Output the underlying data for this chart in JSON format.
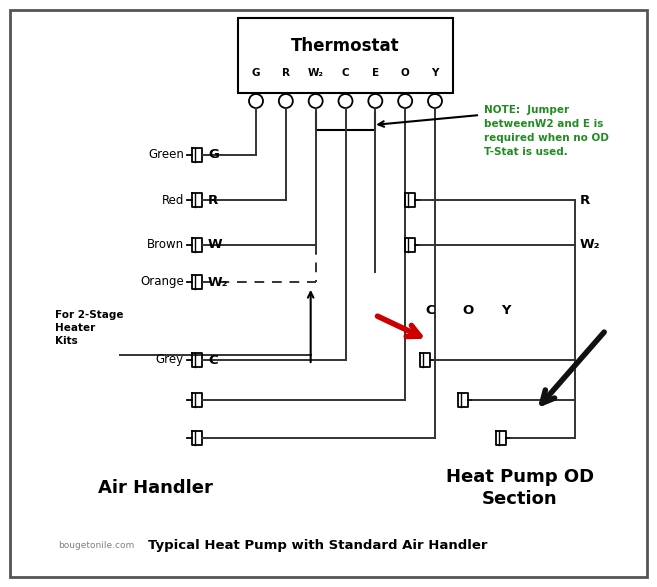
{
  "title": "Typical Heat Pump with Standard Air Handler",
  "subtitle": "bougetonile.com",
  "thermostat_label": "Thermostat",
  "note_text": "NOTE:  Jumper\nbetweenW2 and E is\nrequired when no OD\nT-Stat is used.",
  "air_handler_label": "Air Handler",
  "heat_pump_label": "Heat Pump OD\nSection",
  "for_2stage_text": "For 2-Stage\nHeater\nKits",
  "bg_color": "#ffffff",
  "border_color": "#333333",
  "wire_color": "#333333",
  "note_color": "#228B22",
  "red_arrow_color": "#cc0000",
  "black_arrow_color": "#111111",
  "figsize": [
    6.57,
    5.87
  ],
  "dpi": 100
}
